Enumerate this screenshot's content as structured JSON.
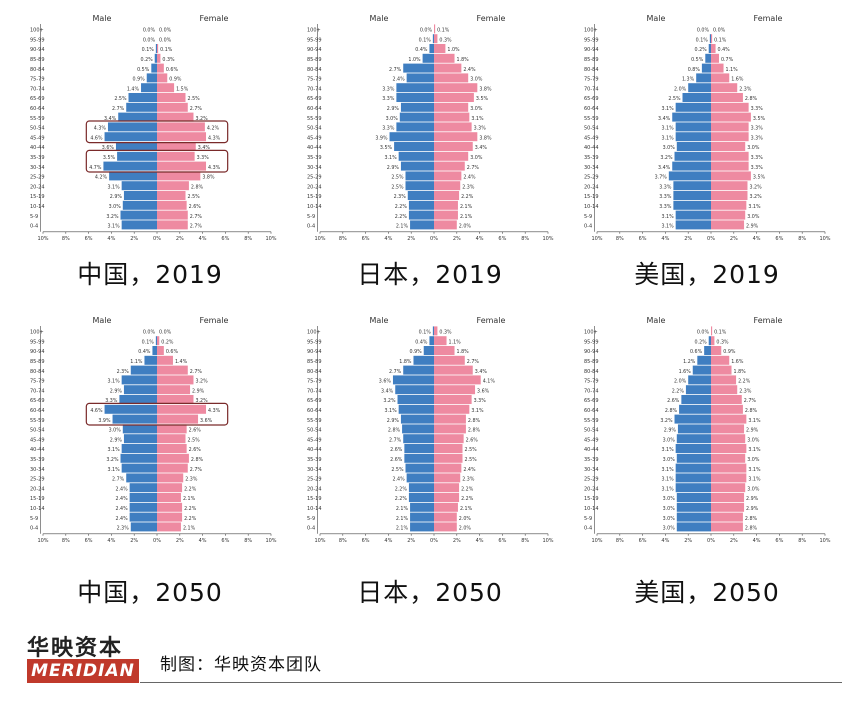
{
  "colors": {
    "male": "#3f7ec1",
    "female": "#ee8aa1",
    "highlight": "#7a2a2a",
    "axis": "#444444"
  },
  "age_groups": [
    "0-4",
    "5-9",
    "10-14",
    "15-19",
    "20-24",
    "25-29",
    "30-34",
    "35-39",
    "40-44",
    "45-49",
    "50-54",
    "55-59",
    "60-64",
    "65-69",
    "70-74",
    "75-79",
    "80-84",
    "85-89",
    "90-94",
    "95-99",
    "100+"
  ],
  "x_ticks": [
    "10%",
    "8%",
    "6%",
    "4%",
    "2%",
    "0%",
    "2%",
    "4%",
    "6%",
    "8%",
    "10%"
  ],
  "chart_data": [
    {
      "id": "china-2019",
      "type": "bar",
      "title": "中国，2019",
      "male_label": "Male",
      "female_label": "Female",
      "xlim": [
        0,
        10
      ],
      "highlight_groups": [
        [
          10,
          9
        ],
        [
          7,
          6
        ]
      ],
      "male": [
        3.1,
        3.2,
        3.0,
        2.9,
        3.1,
        4.2,
        4.7,
        3.5,
        3.6,
        4.6,
        4.3,
        3.4,
        2.7,
        2.5,
        1.4,
        0.9,
        0.5,
        0.2,
        0.1,
        0.0,
        0.0
      ],
      "female": [
        2.7,
        2.7,
        2.6,
        2.5,
        2.8,
        3.8,
        4.3,
        3.3,
        3.4,
        4.3,
        4.2,
        3.2,
        2.7,
        2.5,
        1.5,
        0.9,
        0.6,
        0.3,
        0.1,
        0.0,
        0.0
      ]
    },
    {
      "id": "japan-2019",
      "type": "bar",
      "title": "日本，2019",
      "male_label": "Male",
      "female_label": "Female",
      "xlim": [
        0,
        10
      ],
      "highlight_groups": [],
      "male": [
        2.1,
        2.2,
        2.2,
        2.3,
        2.5,
        2.5,
        2.9,
        3.1,
        3.5,
        3.9,
        3.3,
        3.0,
        2.9,
        3.3,
        3.3,
        2.4,
        2.7,
        1.0,
        0.4,
        0.1,
        0.0
      ],
      "female": [
        2.0,
        2.1,
        2.1,
        2.2,
        2.3,
        2.4,
        2.7,
        3.0,
        3.4,
        3.8,
        3.3,
        3.1,
        3.0,
        3.5,
        3.8,
        3.0,
        2.4,
        1.8,
        1.0,
        0.3,
        0.1
      ]
    },
    {
      "id": "usa-2019",
      "type": "bar",
      "title": "美国，2019",
      "male_label": "Male",
      "female_label": "Female",
      "xlim": [
        0,
        10
      ],
      "highlight_groups": [],
      "male": [
        3.1,
        3.1,
        3.3,
        3.3,
        3.3,
        3.7,
        3.4,
        3.2,
        3.0,
        3.1,
        3.1,
        3.4,
        3.1,
        2.5,
        2.0,
        1.3,
        0.8,
        0.5,
        0.2,
        0.1,
        0.0
      ],
      "female": [
        2.9,
        3.0,
        3.1,
        3.2,
        3.2,
        3.5,
        3.3,
        3.3,
        3.0,
        3.3,
        3.3,
        3.5,
        3.3,
        2.8,
        2.3,
        1.6,
        1.1,
        0.7,
        0.4,
        0.1,
        0.0
      ]
    },
    {
      "id": "china-2050",
      "type": "bar",
      "title": "中国，2050",
      "male_label": "Male",
      "female_label": "Female",
      "xlim": [
        0,
        10
      ],
      "highlight_groups": [
        [
          12,
          11
        ]
      ],
      "male": [
        2.3,
        2.4,
        2.4,
        2.4,
        2.4,
        2.7,
        3.1,
        3.2,
        3.1,
        2.9,
        3.0,
        3.9,
        4.6,
        3.3,
        2.9,
        3.1,
        2.3,
        1.1,
        0.4,
        0.1,
        0.0
      ],
      "female": [
        2.1,
        2.2,
        2.2,
        2.1,
        2.2,
        2.3,
        2.7,
        2.8,
        2.6,
        2.5,
        2.6,
        3.6,
        4.3,
        3.2,
        2.9,
        3.2,
        2.7,
        1.4,
        0.6,
        0.2,
        0.0
      ]
    },
    {
      "id": "japan-2050",
      "type": "bar",
      "title": "日本，2050",
      "male_label": "Male",
      "female_label": "Female",
      "xlim": [
        0,
        10
      ],
      "highlight_groups": [],
      "male": [
        2.1,
        2.1,
        2.1,
        2.2,
        2.2,
        2.4,
        2.5,
        2.6,
        2.6,
        2.7,
        2.8,
        2.9,
        3.1,
        3.2,
        3.4,
        3.6,
        2.7,
        1.8,
        0.9,
        0.4,
        0.1
      ],
      "female": [
        2.0,
        2.0,
        2.1,
        2.2,
        2.2,
        2.3,
        2.4,
        2.5,
        2.5,
        2.6,
        2.8,
        2.8,
        3.1,
        3.3,
        3.6,
        4.1,
        3.4,
        2.7,
        1.8,
        1.1,
        0.3
      ]
    },
    {
      "id": "usa-2050",
      "type": "bar",
      "title": "美国，2050",
      "male_label": "Male",
      "female_label": "Female",
      "xlim": [
        0,
        10
      ],
      "highlight_groups": [],
      "male": [
        3.0,
        3.0,
        3.0,
        3.0,
        3.1,
        3.1,
        3.1,
        3.0,
        3.1,
        3.0,
        2.9,
        3.2,
        2.8,
        2.6,
        2.2,
        2.0,
        1.6,
        1.2,
        0.6,
        0.2,
        0.0
      ],
      "female": [
        2.8,
        2.8,
        2.9,
        2.9,
        3.0,
        3.1,
        3.1,
        3.0,
        3.1,
        3.0,
        2.9,
        3.1,
        2.8,
        2.7,
        2.3,
        2.2,
        1.8,
        1.6,
        0.9,
        0.3,
        0.1
      ]
    }
  ],
  "footer": {
    "logo_text": "华映资本",
    "brand_text": "MERIDIAN",
    "credit": "制图：华映资本团队"
  }
}
